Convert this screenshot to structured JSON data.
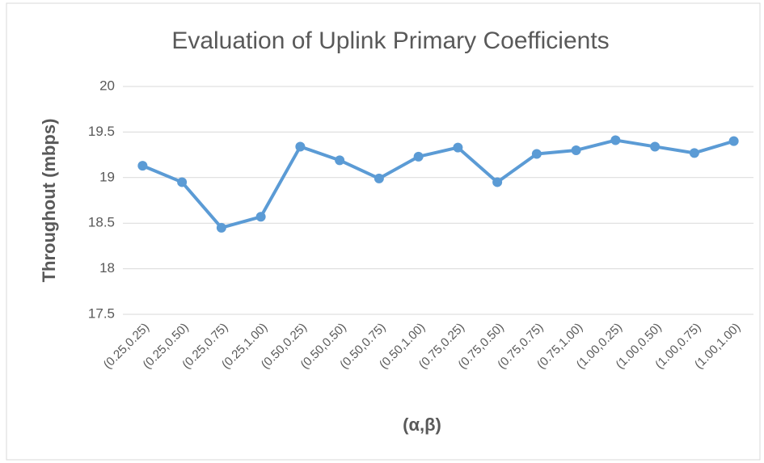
{
  "chart_data": {
    "type": "line",
    "title": "Evaluation of Uplink Primary Coefficients",
    "x_label": "(α,β)",
    "y_label": "Throughout (mbps)",
    "categories": [
      "(0.25,0.25)",
      "(0.25,0.50)",
      "(0.25,0.75)",
      "(0.25,1.00)",
      "(0.50,0.25)",
      "(0.50,0.50)",
      "(0.50,0.75)",
      "(0.50,1.00)",
      "(0.75,0.25)",
      "(0.75,0.50)",
      "(0.75,0.75)",
      "(0.75,1.00)",
      "(1.00,0.25)",
      "(1.00,0.50)",
      "(1.00,0.75)",
      "(1.00,1.00)"
    ],
    "series": [
      {
        "name": "Throughout",
        "color": "#5b9bd5",
        "values": [
          19.13,
          18.95,
          18.45,
          18.57,
          19.34,
          19.19,
          18.99,
          19.23,
          19.33,
          18.95,
          19.26,
          19.3,
          19.41,
          19.34,
          19.27,
          19.4
        ]
      }
    ],
    "ylim": [
      17.5,
      20
    ],
    "yticks": [
      17.5,
      18,
      18.5,
      19,
      19.5,
      20
    ],
    "grid": true,
    "legend": false
  }
}
